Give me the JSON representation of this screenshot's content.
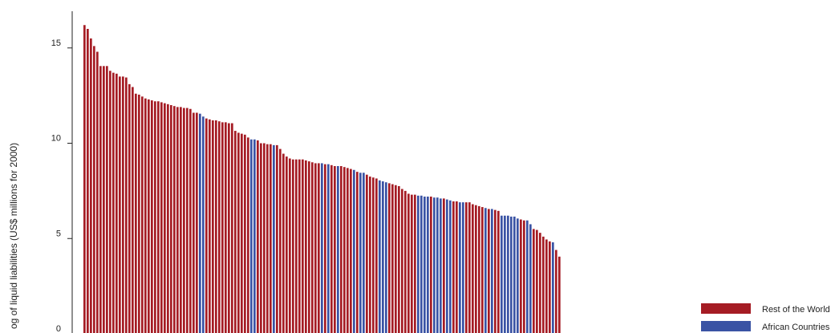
{
  "chart_data": {
    "type": "bar",
    "title": "",
    "xlabel": "",
    "ylabel": "og of liquid liabilities (US$ millions for 2000)",
    "ylim": [
      0,
      16.5
    ],
    "yticks": [
      0,
      5,
      10,
      15
    ],
    "grid": false,
    "legend_position": "bottom-right",
    "series": [
      {
        "name": "Rest of the World",
        "color": "#a51c24"
      },
      {
        "name": "African Countries",
        "color": "#3a53a4"
      }
    ],
    "bars": [
      {
        "v": 16.2,
        "s": 0
      },
      {
        "v": 16.0,
        "s": 0
      },
      {
        "v": 15.5,
        "s": 0
      },
      {
        "v": 15.1,
        "s": 0
      },
      {
        "v": 14.8,
        "s": 0
      },
      {
        "v": 14.05,
        "s": 0
      },
      {
        "v": 14.05,
        "s": 0
      },
      {
        "v": 14.05,
        "s": 0
      },
      {
        "v": 13.8,
        "s": 0
      },
      {
        "v": 13.7,
        "s": 0
      },
      {
        "v": 13.65,
        "s": 0
      },
      {
        "v": 13.5,
        "s": 0
      },
      {
        "v": 13.5,
        "s": 0
      },
      {
        "v": 13.45,
        "s": 0
      },
      {
        "v": 13.1,
        "s": 0
      },
      {
        "v": 12.95,
        "s": 0
      },
      {
        "v": 12.6,
        "s": 0
      },
      {
        "v": 12.55,
        "s": 0
      },
      {
        "v": 12.45,
        "s": 0
      },
      {
        "v": 12.35,
        "s": 0
      },
      {
        "v": 12.3,
        "s": 0
      },
      {
        "v": 12.25,
        "s": 0
      },
      {
        "v": 12.2,
        "s": 0
      },
      {
        "v": 12.2,
        "s": 0
      },
      {
        "v": 12.15,
        "s": 0
      },
      {
        "v": 12.1,
        "s": 0
      },
      {
        "v": 12.05,
        "s": 0
      },
      {
        "v": 12.0,
        "s": 0
      },
      {
        "v": 11.95,
        "s": 0
      },
      {
        "v": 11.9,
        "s": 0
      },
      {
        "v": 11.9,
        "s": 0
      },
      {
        "v": 11.85,
        "s": 0
      },
      {
        "v": 11.85,
        "s": 0
      },
      {
        "v": 11.8,
        "s": 0
      },
      {
        "v": 11.6,
        "s": 0
      },
      {
        "v": 11.6,
        "s": 0
      },
      {
        "v": 11.55,
        "s": 1
      },
      {
        "v": 11.4,
        "s": 1
      },
      {
        "v": 11.3,
        "s": 0
      },
      {
        "v": 11.25,
        "s": 0
      },
      {
        "v": 11.2,
        "s": 0
      },
      {
        "v": 11.2,
        "s": 0
      },
      {
        "v": 11.15,
        "s": 0
      },
      {
        "v": 11.1,
        "s": 0
      },
      {
        "v": 11.1,
        "s": 0
      },
      {
        "v": 11.05,
        "s": 0
      },
      {
        "v": 11.05,
        "s": 0
      },
      {
        "v": 10.65,
        "s": 0
      },
      {
        "v": 10.55,
        "s": 0
      },
      {
        "v": 10.5,
        "s": 0
      },
      {
        "v": 10.45,
        "s": 0
      },
      {
        "v": 10.3,
        "s": 0
      },
      {
        "v": 10.2,
        "s": 1
      },
      {
        "v": 10.2,
        "s": 1
      },
      {
        "v": 10.15,
        "s": 0
      },
      {
        "v": 10.0,
        "s": 0
      },
      {
        "v": 10.0,
        "s": 0
      },
      {
        "v": 9.95,
        "s": 0
      },
      {
        "v": 9.95,
        "s": 0
      },
      {
        "v": 9.9,
        "s": 1
      },
      {
        "v": 9.9,
        "s": 0
      },
      {
        "v": 9.7,
        "s": 0
      },
      {
        "v": 9.45,
        "s": 0
      },
      {
        "v": 9.3,
        "s": 0
      },
      {
        "v": 9.2,
        "s": 0
      },
      {
        "v": 9.15,
        "s": 0
      },
      {
        "v": 9.15,
        "s": 0
      },
      {
        "v": 9.15,
        "s": 0
      },
      {
        "v": 9.15,
        "s": 0
      },
      {
        "v": 9.1,
        "s": 0
      },
      {
        "v": 9.05,
        "s": 0
      },
      {
        "v": 9.0,
        "s": 0
      },
      {
        "v": 8.95,
        "s": 0
      },
      {
        "v": 8.95,
        "s": 0
      },
      {
        "v": 8.95,
        "s": 1
      },
      {
        "v": 8.9,
        "s": 0
      },
      {
        "v": 8.9,
        "s": 1
      },
      {
        "v": 8.85,
        "s": 0
      },
      {
        "v": 8.8,
        "s": 0
      },
      {
        "v": 8.8,
        "s": 1
      },
      {
        "v": 8.8,
        "s": 0
      },
      {
        "v": 8.75,
        "s": 0
      },
      {
        "v": 8.7,
        "s": 0
      },
      {
        "v": 8.65,
        "s": 0
      },
      {
        "v": 8.6,
        "s": 1
      },
      {
        "v": 8.5,
        "s": 0
      },
      {
        "v": 8.45,
        "s": 1
      },
      {
        "v": 8.45,
        "s": 1
      },
      {
        "v": 8.35,
        "s": 0
      },
      {
        "v": 8.25,
        "s": 0
      },
      {
        "v": 8.2,
        "s": 0
      },
      {
        "v": 8.15,
        "s": 0
      },
      {
        "v": 8.05,
        "s": 1
      },
      {
        "v": 8.0,
        "s": 1
      },
      {
        "v": 7.95,
        "s": 1
      },
      {
        "v": 7.9,
        "s": 0
      },
      {
        "v": 7.85,
        "s": 0
      },
      {
        "v": 7.8,
        "s": 0
      },
      {
        "v": 7.75,
        "s": 0
      },
      {
        "v": 7.6,
        "s": 0
      },
      {
        "v": 7.5,
        "s": 0
      },
      {
        "v": 7.35,
        "s": 0
      },
      {
        "v": 7.3,
        "s": 0
      },
      {
        "v": 7.3,
        "s": 0
      },
      {
        "v": 7.25,
        "s": 1
      },
      {
        "v": 7.25,
        "s": 1
      },
      {
        "v": 7.2,
        "s": 1
      },
      {
        "v": 7.2,
        "s": 1
      },
      {
        "v": 7.2,
        "s": 0
      },
      {
        "v": 7.15,
        "s": 1
      },
      {
        "v": 7.15,
        "s": 1
      },
      {
        "v": 7.1,
        "s": 1
      },
      {
        "v": 7.1,
        "s": 0
      },
      {
        "v": 7.05,
        "s": 1
      },
      {
        "v": 7.0,
        "s": 1
      },
      {
        "v": 6.95,
        "s": 0
      },
      {
        "v": 6.95,
        "s": 0
      },
      {
        "v": 6.9,
        "s": 1
      },
      {
        "v": 6.9,
        "s": 1
      },
      {
        "v": 6.9,
        "s": 0
      },
      {
        "v": 6.9,
        "s": 0
      },
      {
        "v": 6.8,
        "s": 0
      },
      {
        "v": 6.75,
        "s": 0
      },
      {
        "v": 6.7,
        "s": 0
      },
      {
        "v": 6.65,
        "s": 0
      },
      {
        "v": 6.6,
        "s": 1
      },
      {
        "v": 6.55,
        "s": 0
      },
      {
        "v": 6.55,
        "s": 1
      },
      {
        "v": 6.5,
        "s": 0
      },
      {
        "v": 6.45,
        "s": 0
      },
      {
        "v": 6.2,
        "s": 1
      },
      {
        "v": 6.2,
        "s": 1
      },
      {
        "v": 6.2,
        "s": 1
      },
      {
        "v": 6.15,
        "s": 1
      },
      {
        "v": 6.15,
        "s": 1
      },
      {
        "v": 6.05,
        "s": 1
      },
      {
        "v": 6.0,
        "s": 0
      },
      {
        "v": 5.95,
        "s": 0
      },
      {
        "v": 5.95,
        "s": 1
      },
      {
        "v": 5.75,
        "s": 1
      },
      {
        "v": 5.5,
        "s": 0
      },
      {
        "v": 5.45,
        "s": 0
      },
      {
        "v": 5.3,
        "s": 0
      },
      {
        "v": 5.1,
        "s": 0
      },
      {
        "v": 4.95,
        "s": 0
      },
      {
        "v": 4.85,
        "s": 0
      },
      {
        "v": 4.8,
        "s": 1
      },
      {
        "v": 4.4,
        "s": 0
      },
      {
        "v": 4.05,
        "s": 0
      }
    ]
  }
}
